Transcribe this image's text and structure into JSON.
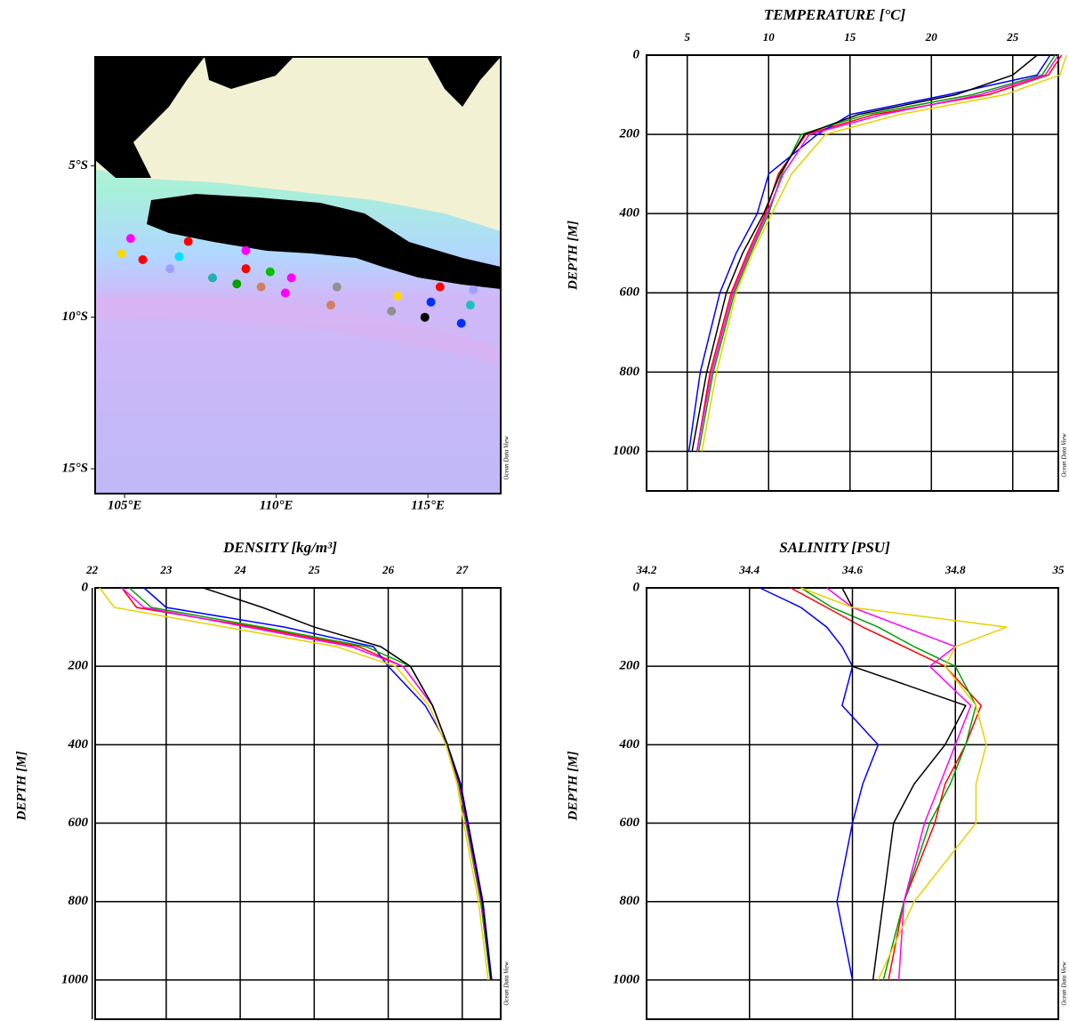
{
  "chart_data": [
    {
      "type": "map",
      "xlim": [
        104.03,
        117.4
      ],
      "ylim": [
        -15.82,
        -1.41
      ],
      "xticks": [
        {
          "value": 105,
          "label": "105°E"
        },
        {
          "value": 110,
          "label": "110°E"
        },
        {
          "value": 115,
          "label": "115°E"
        }
      ],
      "yticks": [
        {
          "value": -5,
          "label": "5°S"
        },
        {
          "value": -10,
          "label": "10°S"
        },
        {
          "value": -15,
          "label": "15°S"
        }
      ],
      "x": [
        105.2,
        104.9,
        105.6,
        107.1,
        106.5,
        106.8,
        107.9,
        108.7,
        109.0,
        109.5,
        109.8,
        110.3,
        110.5,
        111.8,
        112.0,
        113.8,
        114.0,
        114.9,
        115.1,
        115.4,
        116.1,
        116.4,
        116.5,
        109.0
      ],
      "y": [
        -7.4,
        -7.9,
        -8.1,
        -7.5,
        -8.4,
        -8.0,
        -8.7,
        -8.9,
        -8.4,
        -9.0,
        -8.5,
        -9.2,
        -8.7,
        -9.6,
        -9.0,
        -9.8,
        -9.3,
        -10.0,
        -9.5,
        -9.0,
        -10.2,
        -9.6,
        -9.1,
        -7.8
      ],
      "colors": [
        "#ff00ff",
        "#ffd700",
        "#ff0000",
        "#ff0000",
        "#a0a0ff",
        "#00e0ff",
        "#20b0b0",
        "#00a000",
        "#ff0000",
        "#d08060",
        "#00c000",
        "#ff00ff",
        "#ff00ff",
        "#d08060",
        "#909090",
        "#909090",
        "#ffd700",
        "#000000",
        "#0030ff",
        "#ff0000",
        "#0030ff",
        "#20c0c0",
        "#a0a0ff",
        "#ff00ff"
      ],
      "credit": "Ocean Data View"
    },
    {
      "type": "line",
      "title": "TEMPERATURE [°C]",
      "ylabel": "DEPTH [M]",
      "credit": "Ocean Data View",
      "xlim": [
        2.5,
        27.8
      ],
      "xticks": [
        5,
        10,
        15,
        20,
        25
      ],
      "ylim": [
        0,
        1100
      ],
      "yticks": [
        0,
        200,
        400,
        600,
        800,
        1000
      ],
      "y_inverted": true,
      "grid": true,
      "y": [
        0,
        50,
        100,
        150,
        200,
        300,
        400,
        500,
        600,
        800,
        1000
      ],
      "series": [
        {
          "color": "#ff0000",
          "values": [
            28.0,
            27.2,
            23.5,
            16.5,
            12.3,
            10.6,
            9.8,
            8.7,
            7.7,
            6.4,
            5.6
          ]
        },
        {
          "color": "#0000ff",
          "values": [
            27.3,
            26.5,
            21.0,
            15.0,
            13.0,
            10.0,
            9.3,
            8.0,
            7.0,
            5.8,
            5.1
          ]
        },
        {
          "color": "#00a000",
          "values": [
            27.6,
            26.8,
            22.5,
            16.0,
            12.0,
            10.8,
            10.0,
            8.9,
            7.9,
            6.6,
            5.7
          ]
        },
        {
          "color": "#ff00ff",
          "values": [
            27.8,
            27.0,
            23.0,
            17.0,
            12.5,
            10.9,
            9.9,
            8.8,
            7.8,
            6.5,
            5.6
          ]
        },
        {
          "color": "#000000",
          "values": [
            26.5,
            25.0,
            21.5,
            15.5,
            12.2,
            10.7,
            9.7,
            8.4,
            7.4,
            6.2,
            5.3
          ]
        },
        {
          "color": "#e6d200",
          "values": [
            28.3,
            27.9,
            24.5,
            18.0,
            13.5,
            11.4,
            10.2,
            9.0,
            8.0,
            6.8,
            5.9
          ]
        }
      ]
    },
    {
      "type": "line",
      "title": "DENSITY [kg/m³]",
      "ylabel": "DEPTH [M]",
      "credit": "Ocean Data View",
      "xlim": [
        22.04,
        27.52
      ],
      "xticks": [
        22,
        23,
        24,
        25,
        26,
        27
      ],
      "ylim": [
        0,
        1100
      ],
      "yticks": [
        0,
        200,
        400,
        600,
        800,
        1000
      ],
      "y_inverted": true,
      "grid": true,
      "y": [
        0,
        50,
        100,
        150,
        200,
        300,
        400,
        500,
        600,
        800,
        1000
      ],
      "series": [
        {
          "color": "#ff0000",
          "values": [
            22.4,
            22.6,
            24.2,
            25.6,
            26.2,
            26.6,
            26.8,
            26.95,
            27.05,
            27.25,
            27.4
          ]
        },
        {
          "color": "#0000ff",
          "values": [
            22.7,
            23.0,
            24.6,
            25.8,
            26.0,
            26.5,
            26.8,
            26.98,
            27.08,
            27.28,
            27.4
          ]
        },
        {
          "color": "#00a000",
          "values": [
            22.5,
            22.8,
            24.3,
            25.7,
            26.3,
            26.6,
            26.8,
            26.95,
            27.05,
            27.25,
            27.38
          ]
        },
        {
          "color": "#ff00ff",
          "values": [
            22.4,
            22.7,
            24.1,
            25.5,
            26.2,
            26.6,
            26.8,
            26.96,
            27.06,
            27.26,
            27.39
          ]
        },
        {
          "color": "#000000",
          "values": [
            23.5,
            24.3,
            25.0,
            25.9,
            26.3,
            26.6,
            26.8,
            26.97,
            27.07,
            27.27,
            27.39
          ]
        },
        {
          "color": "#e6d200",
          "values": [
            22.1,
            22.3,
            23.8,
            25.3,
            26.1,
            26.55,
            26.78,
            26.93,
            27.02,
            27.22,
            27.35
          ]
        }
      ]
    },
    {
      "type": "line",
      "title": "SALINITY [PSU]",
      "ylabel": "DEPTH [M]",
      "credit": "Ocean Data View",
      "xlim": [
        34.2,
        35.0
      ],
      "xticks": [
        34.2,
        34.4,
        34.6,
        34.8,
        35
      ],
      "ylim": [
        0,
        1100
      ],
      "yticks": [
        0,
        200,
        400,
        600,
        800,
        1000
      ],
      "y_inverted": true,
      "grid": true,
      "y": [
        0,
        50,
        100,
        150,
        200,
        300,
        400,
        500,
        600,
        800,
        1000
      ],
      "series": [
        {
          "color": "#ff0000",
          "values": [
            34.48,
            34.55,
            34.62,
            34.7,
            34.78,
            34.85,
            34.82,
            34.78,
            34.76,
            34.7,
            34.67
          ]
        },
        {
          "color": "#0000ff",
          "values": [
            34.42,
            34.5,
            34.55,
            34.58,
            34.6,
            34.58,
            34.65,
            34.62,
            34.6,
            34.57,
            34.6
          ]
        },
        {
          "color": "#00a000",
          "values": [
            34.5,
            34.56,
            34.65,
            34.72,
            34.8,
            34.84,
            34.82,
            34.79,
            34.75,
            34.7,
            34.66
          ]
        },
        {
          "color": "#ff00ff",
          "values": [
            34.55,
            34.6,
            34.7,
            34.8,
            34.75,
            34.83,
            34.8,
            34.77,
            34.74,
            34.7,
            34.69
          ]
        },
        {
          "color": "#000000",
          "values": [
            34.58,
            34.6,
            34.6,
            34.6,
            34.6,
            34.82,
            34.78,
            34.72,
            34.68,
            34.66,
            34.64
          ]
        },
        {
          "color": "#e6d200",
          "values": [
            34.5,
            34.6,
            34.9,
            34.8,
            34.78,
            34.84,
            34.86,
            34.84,
            34.84,
            34.72,
            34.65
          ]
        }
      ]
    }
  ]
}
